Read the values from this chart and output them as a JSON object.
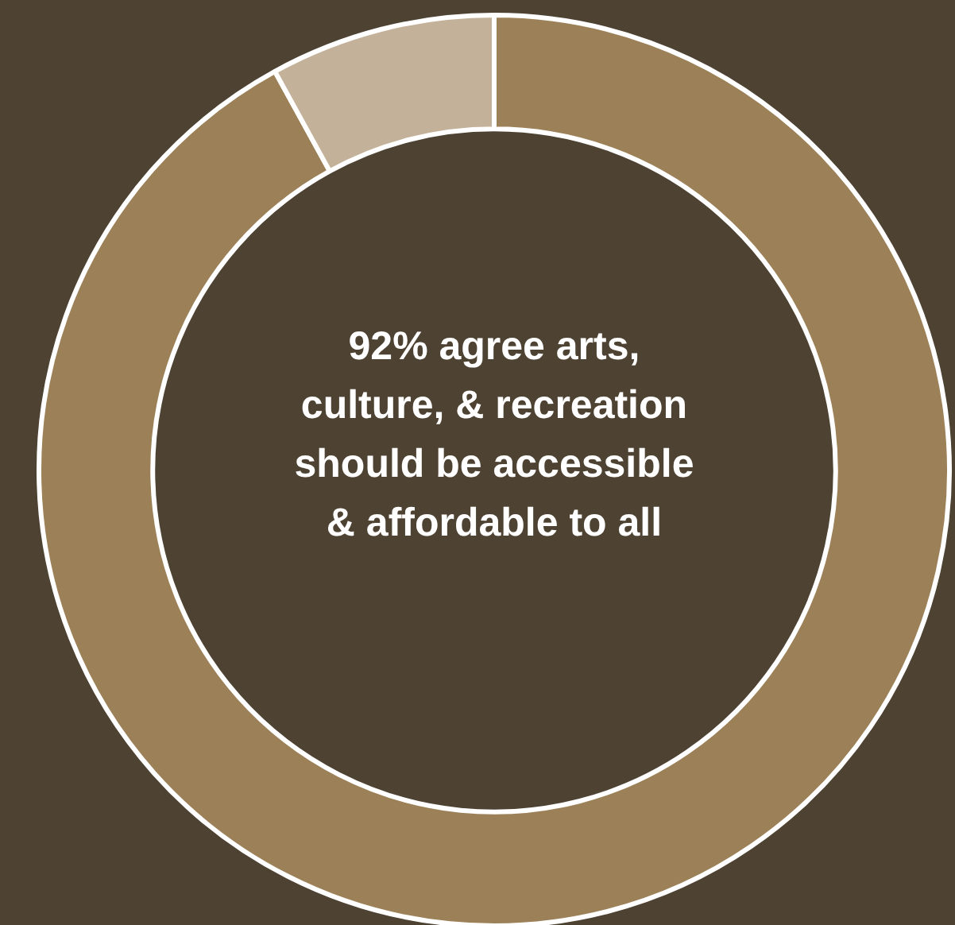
{
  "chart_data": {
    "type": "donut",
    "categories": [
      null,
      null
    ],
    "values": [
      92,
      8
    ],
    "colors": [
      "#9c8158",
      "#c4b199"
    ],
    "annotations": [
      "92% agree arts, culture, & recreation should be accessible & affordable to all"
    ],
    "legend": false
  }
}
